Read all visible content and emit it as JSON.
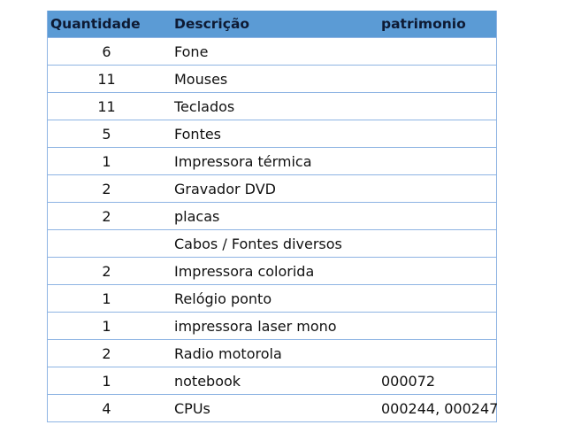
{
  "table": {
    "headers": [
      "Quantidade",
      "Descrição",
      "patrimonio"
    ],
    "rows": [
      {
        "qty": "6",
        "desc": "Fone",
        "pat": ""
      },
      {
        "qty": "11",
        "desc": "Mouses",
        "pat": ""
      },
      {
        "qty": "11",
        "desc": "Teclados",
        "pat": ""
      },
      {
        "qty": "5",
        "desc": "Fontes",
        "pat": ""
      },
      {
        "qty": "1",
        "desc": "Impressora térmica",
        "pat": ""
      },
      {
        "qty": "2",
        "desc": "Gravador DVD",
        "pat": ""
      },
      {
        "qty": "2",
        "desc": "placas",
        "pat": ""
      },
      {
        "qty": "",
        "desc": "Cabos / Fontes diversos",
        "pat": ""
      },
      {
        "qty": "2",
        "desc": "Impressora colorida",
        "pat": ""
      },
      {
        "qty": "1",
        "desc": "Relógio ponto",
        "pat": ""
      },
      {
        "qty": "1",
        "desc": "impressora laser mono",
        "pat": ""
      },
      {
        "qty": "2",
        "desc": "Radio motorola",
        "pat": ""
      },
      {
        "qty": "1",
        "desc": "notebook",
        "pat": "000072"
      },
      {
        "qty": "4",
        "desc": "CPUs",
        "pat": "000244, 000247"
      }
    ]
  },
  "colors": {
    "header_bg": "#5b9bd5",
    "border": "#8eb4e3"
  }
}
